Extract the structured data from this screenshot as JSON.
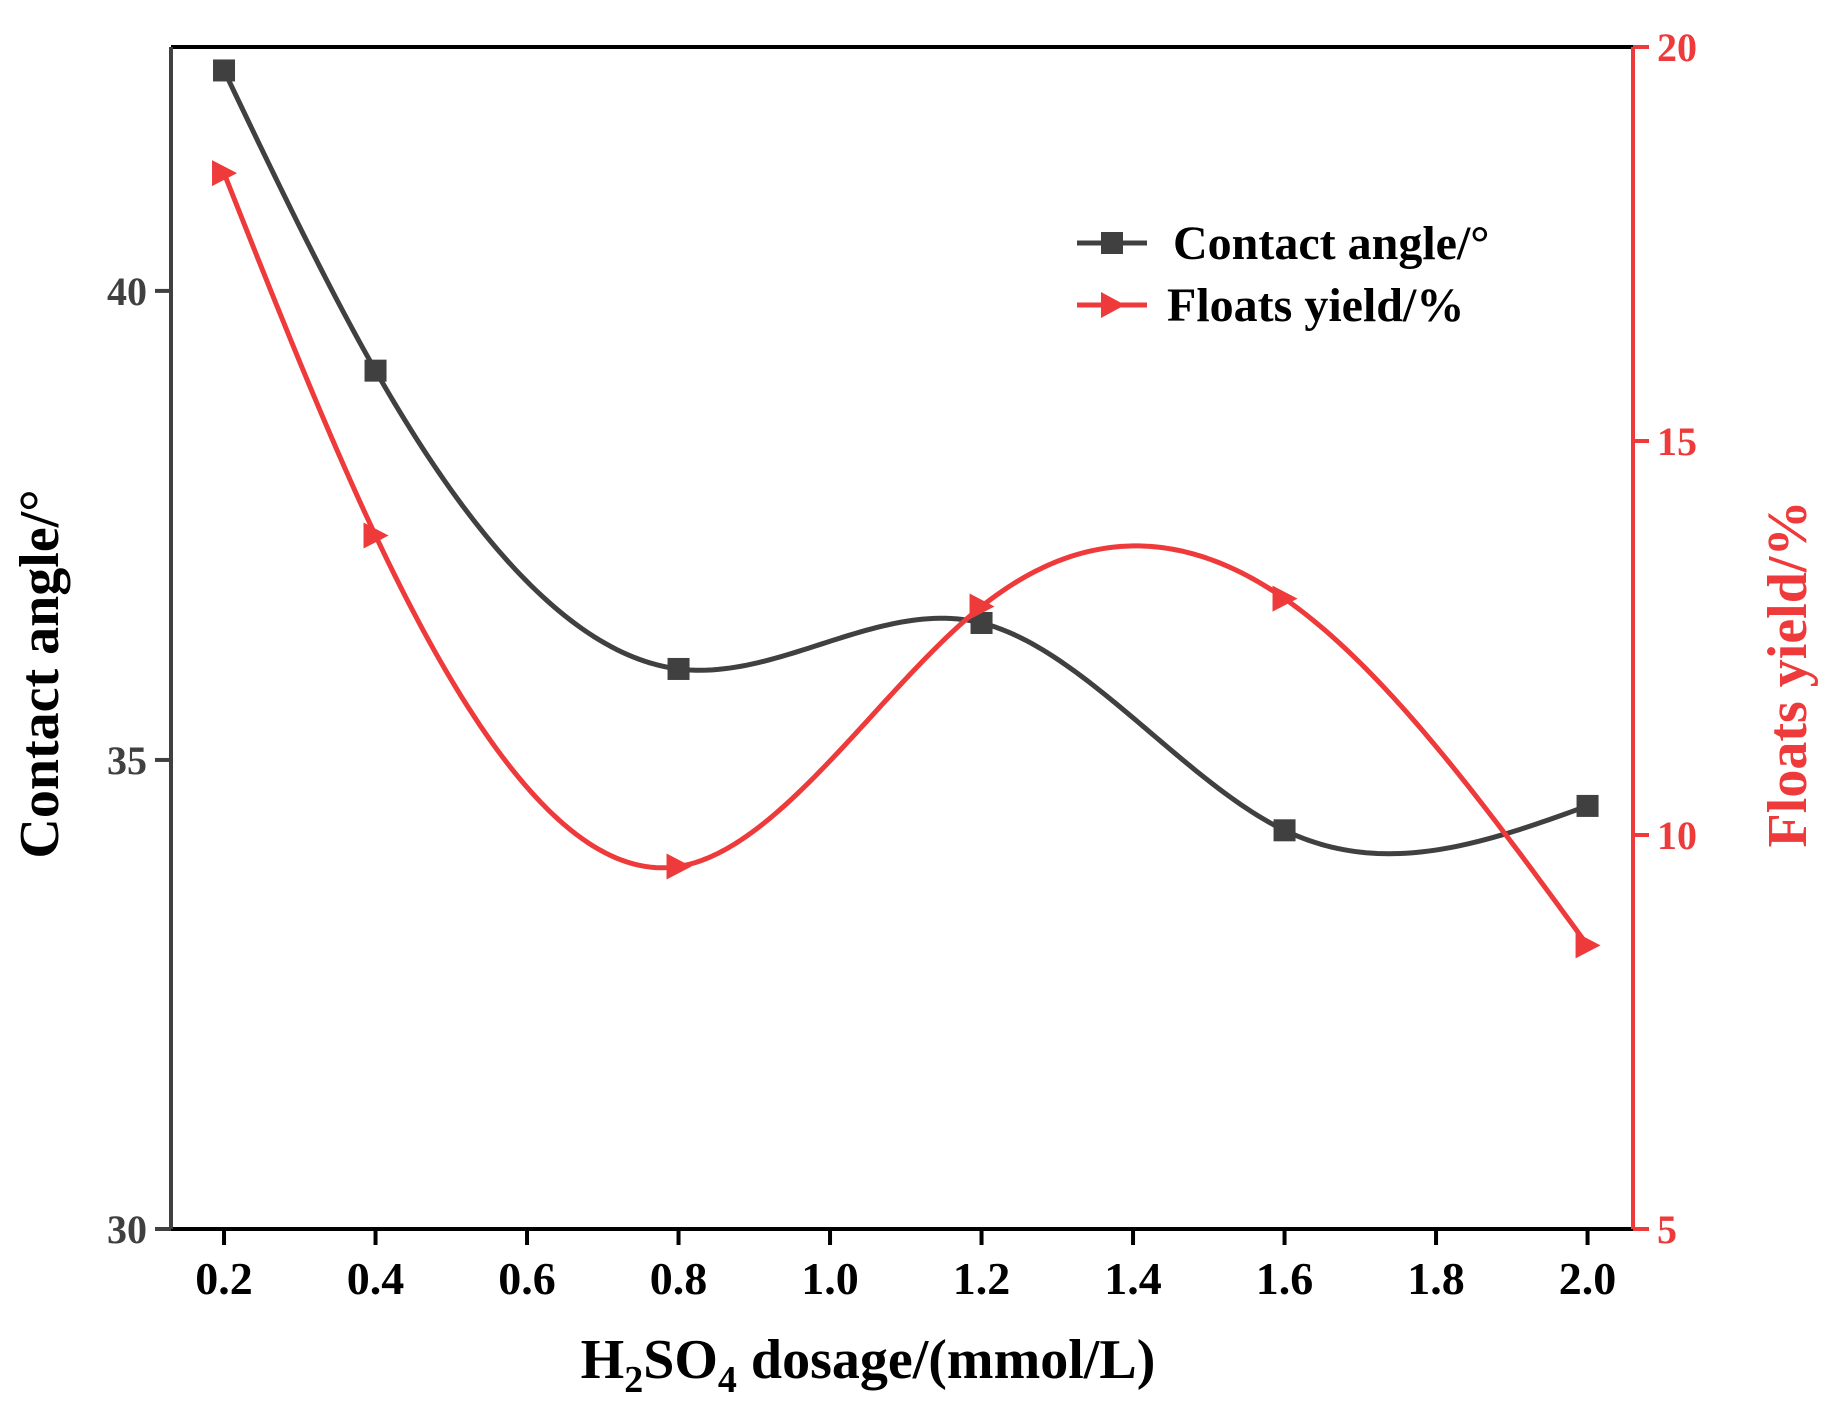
{
  "chart_data": {
    "type": "line",
    "subtype": "dual-y-axis smoothed line with markers",
    "x": [
      0.2,
      0.4,
      0.8,
      1.2,
      1.6,
      2.0
    ],
    "xlim": [
      0.13,
      2.06
    ],
    "xticks": [
      0.2,
      0.4,
      0.6,
      0.8,
      1.0,
      1.2,
      1.4,
      1.6,
      1.8,
      2.0
    ],
    "xtick_labels": [
      "0.2",
      "0.4",
      "0.6",
      "0.8",
      "1.0",
      "1.2",
      "1.4",
      "1.6",
      "1.8",
      "2.0"
    ],
    "xlabel": {
      "prefix": "H",
      "sub1": "2",
      "mid": "SO",
      "sub2": "4",
      "suffix": " dosage/(mmol/L)"
    },
    "y_left": {
      "label": "Contact angle/°",
      "lim": [
        30,
        42.6
      ],
      "ticks": [
        30,
        35,
        40
      ],
      "tick_labels": [
        "30",
        "35",
        "40"
      ],
      "color": "#404040"
    },
    "y_right": {
      "label": "Floats yield/%",
      "lim": [
        5,
        20
      ],
      "ticks": [
        5,
        10,
        15,
        20
      ],
      "tick_labels": [
        "5",
        "10",
        "15",
        "20"
      ],
      "color": "#ee3a3a"
    },
    "series": [
      {
        "name": "Contact angle/°",
        "axis": "left",
        "marker": "square",
        "color": "#404040",
        "values": [
          42.35,
          39.15,
          35.97,
          36.46,
          34.25,
          34.51
        ]
      },
      {
        "name": "Floats yield/%",
        "axis": "right",
        "marker": "triangle-right",
        "color": "#ee3a3a",
        "values": [
          18.4,
          13.8,
          9.6,
          12.9,
          13.0,
          8.6
        ]
      }
    ],
    "legend": {
      "position": "top-right",
      "entries": [
        "Contact angle/°",
        "Floats yield/%"
      ]
    },
    "grid": false
  }
}
